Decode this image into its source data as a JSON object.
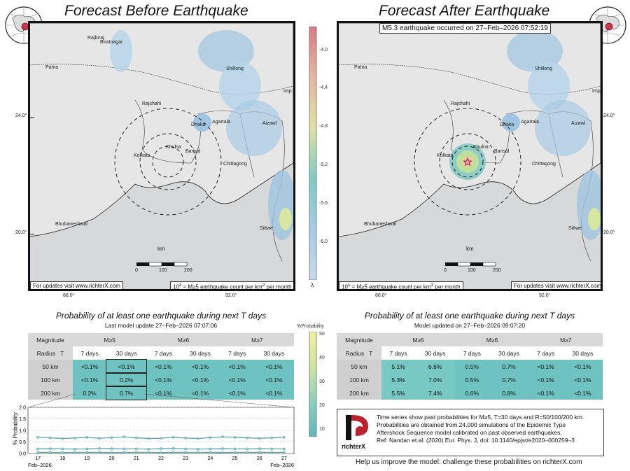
{
  "left_title": "Forecast Before Earthquake",
  "right_title": "Forecast After Earthquake",
  "event_banner": "M5.3 earthquake occurred on 27–Feb–2026 07:52:19",
  "cities": [
    "Rajbiraj",
    "Biratnagar",
    "Patna",
    "Rajshahi",
    "Dhaka",
    "Agartala",
    "Kolkata",
    "Khulna",
    "Barisal",
    "Chittagong",
    "Bhubaneshwar",
    "Sittwe",
    "Shillong",
    "Aizawl",
    "Imp"
  ],
  "lat_labels": [
    "24.0°",
    "20.0°"
  ],
  "lon_labels": [
    "88.0°",
    "92.0°"
  ],
  "scale": {
    "unit": "km",
    "ticks": [
      "0",
      "100",
      "200"
    ]
  },
  "left_update_note": "For updates visit www.richterX.com",
  "right_update_note": "For updates visit www.richterX.com",
  "rate_label": "10^λ = M≥5 earthquake count per km² per month",
  "rate_label_base": "10",
  "rate_label_exp": "λ",
  "rate_label_rest": " = M≥5 earthquake count per km",
  "rate_label_sq": "2",
  "rate_label_end": " per month",
  "lambda_scale": {
    "symbol": "λ",
    "ticks": [
      "-4.0",
      "-4.4",
      "-4.8",
      "-5.2",
      "-5.6",
      "-6.0"
    ]
  },
  "prob_scale": {
    "title": "%Probability",
    "ticks": [
      "50",
      "40",
      "30",
      "20",
      "10"
    ]
  },
  "left_subtitle": "Probability of at least one earthquake during next T days",
  "right_subtitle": "Probability of at least one earthquake during next T days",
  "left_updated": "Last model update 27–Feb–2026 07:07:06",
  "right_updated": "Model updated on 27–Feb–2026 09:07:20",
  "table_headers": {
    "magnitude": "Magnitude",
    "radius": "Radius",
    "t": "T",
    "m5": "M≥5",
    "m6": "M≥6",
    "m7": "M≥7",
    "d7": "7 days",
    "d30": "30 days"
  },
  "radii": [
    "50 km",
    "100 km",
    "200 km"
  ],
  "left_table": [
    [
      "<0.1%",
      "<0.1%",
      "<0.1%",
      "<0.1%",
      "<0.1%",
      "<0.1%"
    ],
    [
      "<0.1%",
      "0.2%",
      "<0.1%",
      "<0.1%",
      "<0.1%",
      "<0.1%"
    ],
    [
      "0.2%",
      "0.7%",
      "<0.1%",
      "<0.1%",
      "<0.1%",
      "<0.1%"
    ]
  ],
  "right_table": [
    [
      "5.1%",
      "6.6%",
      "0.5%",
      "0.7%",
      "<0.1%",
      "<0.1%"
    ],
    [
      "5.3%",
      "7.0%",
      "0.5%",
      "0.7%",
      "<0.1%",
      "<0.1%"
    ],
    [
      "5.5%",
      "7.4%",
      "0.6%",
      "0.8%",
      "<0.1%",
      "<0.1%"
    ]
  ],
  "chart_data": {
    "type": "line",
    "ylabel": "% Probability",
    "ylim": [
      0,
      2.0
    ],
    "yticks": [
      "0.0",
      "0.5",
      "1.0",
      "1.5",
      "2.0"
    ],
    "xticks": [
      "17",
      "18",
      "19",
      "20",
      "21",
      "22",
      "23",
      "24",
      "25",
      "26",
      "27"
    ],
    "x_start_label": "Feb–2026",
    "x_end_label": "Feb–2026",
    "x": [
      17,
      17.5,
      18,
      18.5,
      19,
      19.5,
      20,
      20.5,
      21,
      21.5,
      22,
      22.5,
      23,
      23.5,
      24,
      24.5,
      25,
      25.5,
      26,
      26.5,
      27
    ],
    "series": [
      {
        "values": [
          0.7,
          0.68,
          0.65,
          0.67,
          0.7,
          0.66,
          0.69,
          0.72,
          0.68,
          0.65,
          0.66,
          0.7,
          0.67,
          0.65,
          0.69,
          0.72,
          0.7,
          0.68,
          0.66,
          0.68,
          0.7
        ]
      },
      {
        "values": [
          0.2,
          0.21,
          0.2,
          0.19,
          0.2,
          0.22,
          0.21,
          0.2,
          0.2,
          0.19,
          0.21,
          0.22,
          0.2,
          0.19,
          0.2,
          0.21,
          0.2,
          0.2,
          0.21,
          0.2,
          0.2
        ]
      },
      {
        "values": [
          0.05,
          0.05,
          0.04,
          0.05,
          0.05,
          0.05,
          0.04,
          0.05,
          0.05,
          0.05,
          0.04,
          0.05,
          0.05,
          0.05,
          0.05,
          0.04,
          0.05,
          0.05,
          0.05,
          0.05,
          0.05
        ]
      }
    ]
  },
  "info_text": [
    "Time series show past probabilities for M≥5, T=30 days and R=50/100/200 km.",
    "Probabilities are obtained from 24,000 simulations of the Epidemic Type",
    "Aftershock Sequence model calibrated on past observed earthquakes.",
    "Ref: Nandan et.al. (2020) Eur. Phys. J, doi: 10.1140/epjst/e2020–000259–3"
  ],
  "logo_text": "richterX",
  "footer": "Help us improve the model: challenge these probabilities on richterX.com",
  "colors": {
    "teal": "#78c8c4",
    "teal_light": "#b6e0dc",
    "water": "#cfd3d8",
    "land": "#e3e4e4"
  }
}
